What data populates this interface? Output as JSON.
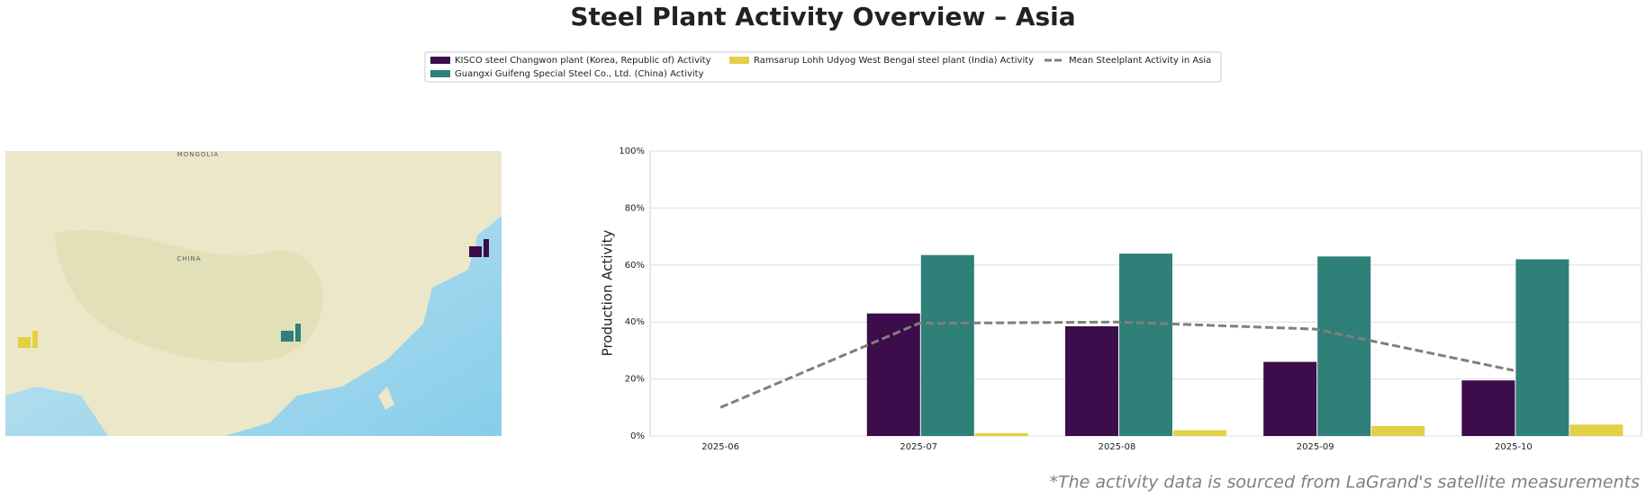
{
  "chart_data": {
    "type": "bar",
    "title": "Steel Plant Activity Overview – Asia",
    "y_label": "Production Activity",
    "footnote": "*The activity data is sourced from LaGrand's satellite measurements",
    "categories": [
      "2025-06",
      "2025-07",
      "2025-08",
      "2025-09",
      "2025-10"
    ],
    "series": [
      {
        "name": "KISCO steel Changwon plant (Korea, Republic of) Activity",
        "color": "#3d0c4a",
        "values": [
          null,
          43,
          38.5,
          26,
          19.5
        ]
      },
      {
        "name": "Guangxi Guifeng Special Steel Co., Ltd. (China) Activity",
        "color": "#2e8079",
        "values": [
          null,
          63.5,
          64,
          63,
          62
        ]
      },
      {
        "name": "Ramsarup Lohh Udyog West Bengal steel plant (India) Activity",
        "color": "#e3d044",
        "values": [
          null,
          1,
          2,
          3.5,
          4
        ]
      },
      {
        "name": "Mean Steelplant Activity in Asia",
        "color": "#7f7f7f",
        "type": "line",
        "values": [
          10,
          39.5,
          40,
          37.5,
          23
        ]
      }
    ],
    "ylim": [
      0,
      100
    ],
    "yticks": [
      {
        "value": 0,
        "label": "0%"
      },
      {
        "value": 20,
        "label": "20%"
      },
      {
        "value": 40,
        "label": "40%"
      },
      {
        "value": 60,
        "label": "60%"
      },
      {
        "value": 80,
        "label": "80%"
      },
      {
        "value": 100,
        "label": "100%"
      }
    ],
    "grid": true,
    "map_labels": [
      "MONGOLIA",
      "CHINA"
    ]
  }
}
